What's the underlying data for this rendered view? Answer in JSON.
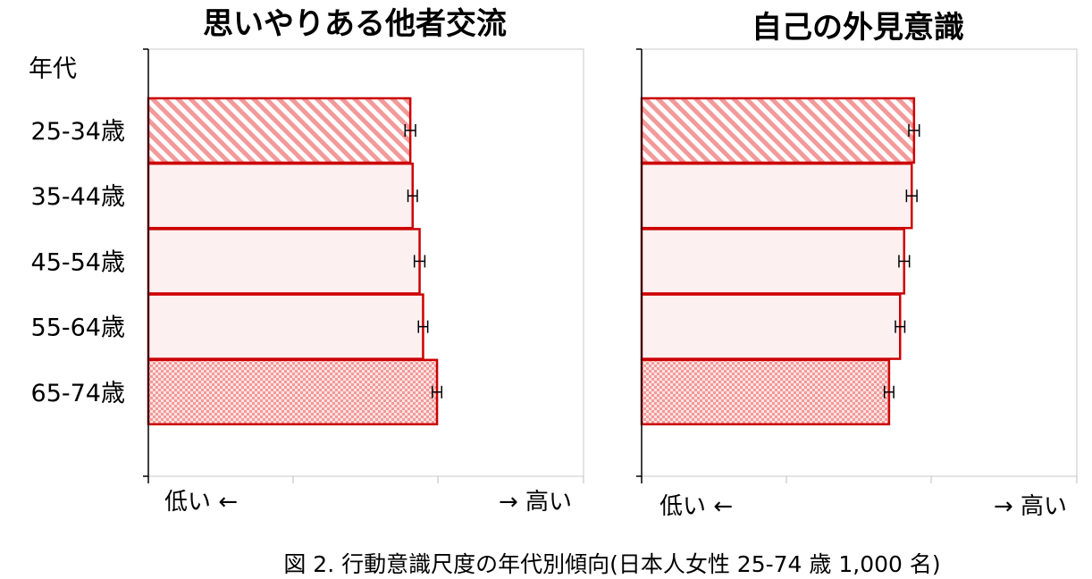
{
  "figure": {
    "row_header": "年代",
    "caption": "図 2. 行動意識尺度の年代別傾向(日本人女性 25-74 歳 1,000 名)"
  },
  "colors": {
    "bar_border": "#cc0000",
    "bar_fill": "#fdf0f0",
    "pattern": "#f29a9a",
    "axis": "#000000",
    "frame": "#c8c8c8",
    "error_bar": "#000000"
  },
  "chart_data": [
    {
      "type": "bar",
      "orientation": "horizontal",
      "title": "思いやりある他者交流",
      "categories": [
        "25-34歳",
        "35-44歳",
        "45-54歳",
        "55-64歳",
        "65-74歳"
      ],
      "values": [
        0.451,
        0.455,
        0.467,
        0.473,
        0.497
      ],
      "error": [
        0.009,
        0.008,
        0.009,
        0.008,
        0.008
      ],
      "fill_patterns": [
        "diagonal",
        "solid",
        "solid",
        "solid",
        "checker"
      ],
      "xlim": [
        0,
        1
      ],
      "low_label": "低い ←",
      "high_label": "→ 高い"
    },
    {
      "type": "bar",
      "orientation": "horizontal",
      "title": "自己の外見意識",
      "categories": [
        "25-34歳",
        "35-44歳",
        "45-54歳",
        "55-64歳",
        "65-74歳"
      ],
      "values": [
        0.469,
        0.465,
        0.452,
        0.445,
        0.426
      ],
      "error": [
        0.009,
        0.009,
        0.009,
        0.008,
        0.008
      ],
      "fill_patterns": [
        "diagonal",
        "solid",
        "solid",
        "solid",
        "checker"
      ],
      "xlim": [
        0,
        1
      ],
      "low_label": "低い ←",
      "high_label": "→ 高い"
    }
  ]
}
